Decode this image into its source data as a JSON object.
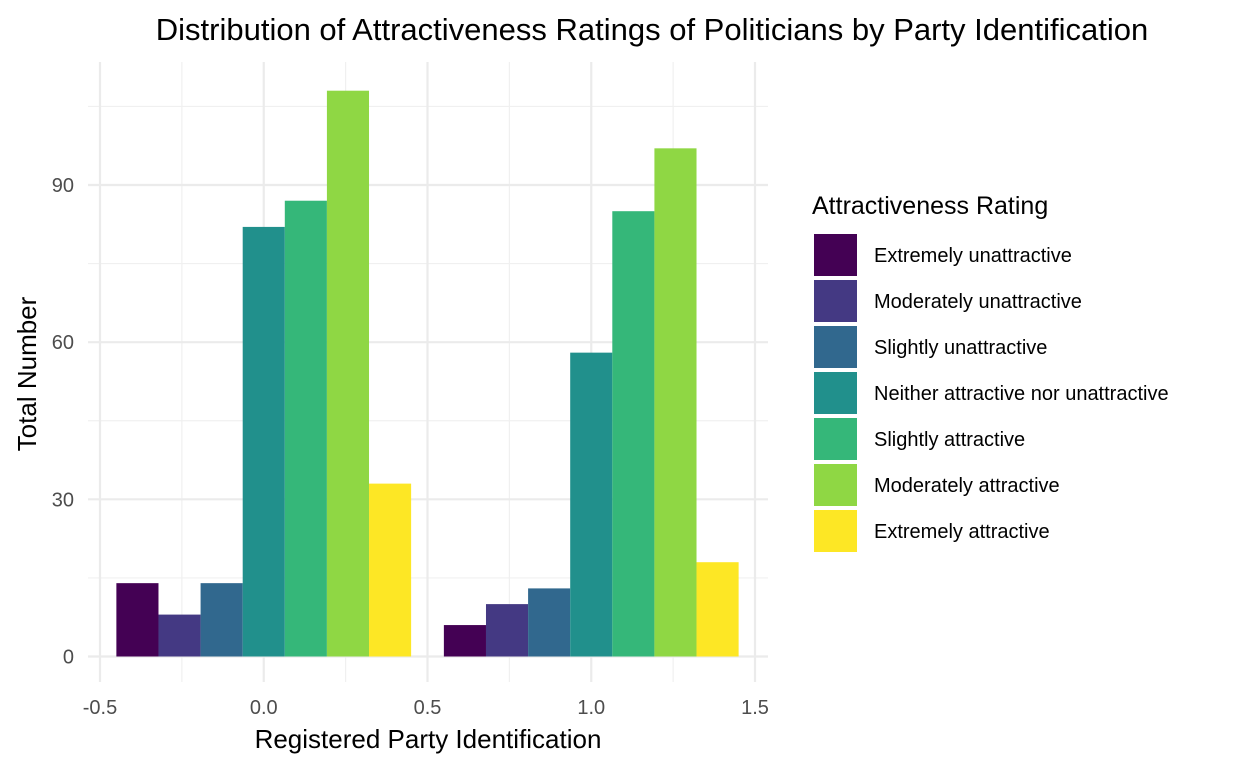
{
  "chart_data": {
    "type": "bar",
    "title": "Distribution of Attractiveness Ratings of Politicians by Party Identification",
    "xlabel": "Registered Party Identification",
    "ylabel": "Total Number",
    "x": [
      0,
      1
    ],
    "xlim": [
      -0.5,
      1.5
    ],
    "ylim": [
      -7,
      110
    ],
    "xticks": [
      -0.5,
      0.0,
      0.5,
      1.0,
      1.5
    ],
    "xtick_labels": [
      "-0.5",
      "0.0",
      "0.5",
      "1.0",
      "1.5"
    ],
    "yticks": [
      0,
      30,
      60,
      90
    ],
    "ytick_labels": [
      "0",
      "30",
      "60",
      "90"
    ],
    "grid": true,
    "legend": {
      "title": "Attractiveness Rating",
      "position": "right"
    },
    "series": [
      {
        "name": "Extremely unattractive",
        "color": "#440154",
        "values": [
          14,
          6
        ]
      },
      {
        "name": "Moderately unattractive",
        "color": "#443983",
        "values": [
          8,
          10
        ]
      },
      {
        "name": "Slightly unattractive",
        "color": "#31688E",
        "values": [
          14,
          13
        ]
      },
      {
        "name": "Neither attractive nor unattractive",
        "color": "#21908C",
        "values": [
          82,
          58
        ]
      },
      {
        "name": "Slightly attractive",
        "color": "#35B779",
        "values": [
          87,
          85
        ]
      },
      {
        "name": "Moderately attractive",
        "color": "#8FD744",
        "values": [
          108,
          97
        ]
      },
      {
        "name": "Extremely attractive",
        "color": "#FDE725",
        "values": [
          33,
          18
        ]
      }
    ]
  }
}
